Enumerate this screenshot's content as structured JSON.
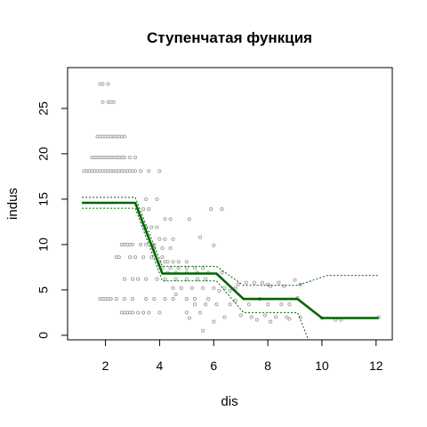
{
  "chart_data": {
    "type": "line",
    "title": "Ступенчатая функция",
    "xlabel": "dis",
    "ylabel": "indus",
    "xlim": [
      0.6,
      12.6
    ],
    "ylim": [
      -0.5,
      29.5
    ],
    "x_ticks": [
      2,
      4,
      6,
      8,
      10,
      12
    ],
    "y_ticks": [
      0,
      5,
      10,
      15,
      20,
      25
    ],
    "legend": "none",
    "grid": false,
    "colors": {
      "fit": "#006400",
      "band": "#006400",
      "points": "#a0a0a0",
      "axes": "#000000"
    },
    "series": [
      {
        "role": "fit",
        "x": [
          1.13,
          3.1,
          4.1,
          6.1,
          7.1,
          9.1,
          10.0,
          12.1
        ],
        "y": [
          14.6,
          14.6,
          6.8,
          6.8,
          4.0,
          4.0,
          1.9,
          1.9
        ]
      },
      {
        "role": "upper_band",
        "x": [
          1.13,
          3.1,
          4.1,
          6.1,
          7.1,
          9.1,
          10.2,
          12.1
        ],
        "y": [
          15.2,
          15.2,
          7.6,
          7.6,
          5.5,
          5.5,
          6.6,
          6.6
        ]
      },
      {
        "role": "lower_band",
        "x": [
          1.13,
          3.1,
          4.1,
          6.1,
          7.1,
          9.1,
          9.5
        ],
        "y": [
          14.0,
          14.0,
          6.0,
          6.0,
          2.5,
          2.5,
          -0.5
        ]
      }
    ],
    "points": [
      [
        1.2,
        18.1
      ],
      [
        1.3,
        18.1
      ],
      [
        1.4,
        18.1
      ],
      [
        1.5,
        18.1
      ],
      [
        1.6,
        18.1
      ],
      [
        1.7,
        18.1
      ],
      [
        1.8,
        18.1
      ],
      [
        1.9,
        18.1
      ],
      [
        2.0,
        18.1
      ],
      [
        2.1,
        18.1
      ],
      [
        2.2,
        18.1
      ],
      [
        2.3,
        18.1
      ],
      [
        2.4,
        18.1
      ],
      [
        2.5,
        18.1
      ],
      [
        2.6,
        18.1
      ],
      [
        2.7,
        18.1
      ],
      [
        2.8,
        18.1
      ],
      [
        2.9,
        18.1
      ],
      [
        3.0,
        18.1
      ],
      [
        3.1,
        18.1
      ],
      [
        3.3,
        18.1
      ],
      [
        3.6,
        18.1
      ],
      [
        4.0,
        18.1
      ],
      [
        1.8,
        27.7
      ],
      [
        1.9,
        27.7
      ],
      [
        2.1,
        27.7
      ],
      [
        1.9,
        25.7
      ],
      [
        2.1,
        25.7
      ],
      [
        2.2,
        25.7
      ],
      [
        2.3,
        25.7
      ],
      [
        1.7,
        21.9
      ],
      [
        1.8,
        21.9
      ],
      [
        1.9,
        21.9
      ],
      [
        2.0,
        21.9
      ],
      [
        2.1,
        21.9
      ],
      [
        2.2,
        21.9
      ],
      [
        2.3,
        21.9
      ],
      [
        2.4,
        21.9
      ],
      [
        2.5,
        21.9
      ],
      [
        2.6,
        21.9
      ],
      [
        2.7,
        21.9
      ],
      [
        1.5,
        19.6
      ],
      [
        1.6,
        19.6
      ],
      [
        1.7,
        19.6
      ],
      [
        1.8,
        19.6
      ],
      [
        1.9,
        19.6
      ],
      [
        2.0,
        19.6
      ],
      [
        2.1,
        19.6
      ],
      [
        2.2,
        19.6
      ],
      [
        2.3,
        19.6
      ],
      [
        2.4,
        19.6
      ],
      [
        2.5,
        19.6
      ],
      [
        2.6,
        19.6
      ],
      [
        2.7,
        19.6
      ],
      [
        2.9,
        19.6
      ],
      [
        3.1,
        19.6
      ],
      [
        2.6,
        10.0
      ],
      [
        2.7,
        10.0
      ],
      [
        2.8,
        10.0
      ],
      [
        2.9,
        10.0
      ],
      [
        3.0,
        10.0
      ],
      [
        3.3,
        10.0
      ],
      [
        3.5,
        10.0
      ],
      [
        3.8,
        10.0
      ],
      [
        2.4,
        8.6
      ],
      [
        2.5,
        8.6
      ],
      [
        2.9,
        8.6
      ],
      [
        3.1,
        8.6
      ],
      [
        3.4,
        8.6
      ],
      [
        3.7,
        8.6
      ],
      [
        4.1,
        8.6
      ],
      [
        2.7,
        6.2
      ],
      [
        3.0,
        6.2
      ],
      [
        3.2,
        6.2
      ],
      [
        3.5,
        6.2
      ],
      [
        3.9,
        6.2
      ],
      [
        4.2,
        6.2
      ],
      [
        4.6,
        6.2
      ],
      [
        5.0,
        6.2
      ],
      [
        5.4,
        6.2
      ],
      [
        5.7,
        6.2
      ],
      [
        1.8,
        4.0
      ],
      [
        1.9,
        4.0
      ],
      [
        2.0,
        4.0
      ],
      [
        2.1,
        4.0
      ],
      [
        2.2,
        4.0
      ],
      [
        2.4,
        4.0
      ],
      [
        2.7,
        4.0
      ],
      [
        3.0,
        4.0
      ],
      [
        3.5,
        4.0
      ],
      [
        3.8,
        4.0
      ],
      [
        4.2,
        4.0
      ],
      [
        4.5,
        4.0
      ],
      [
        5.0,
        4.0
      ],
      [
        5.3,
        4.0
      ],
      [
        2.6,
        2.5
      ],
      [
        2.7,
        2.5
      ],
      [
        2.8,
        2.5
      ],
      [
        2.9,
        2.5
      ],
      [
        3.0,
        2.5
      ],
      [
        3.2,
        2.5
      ],
      [
        3.4,
        2.5
      ],
      [
        3.6,
        2.5
      ],
      [
        4.0,
        2.5
      ],
      [
        5.0,
        2.5
      ],
      [
        5.5,
        2.5
      ],
      [
        3.5,
        15.0
      ],
      [
        3.9,
        15.0
      ],
      [
        3.4,
        13.9
      ],
      [
        3.6,
        13.9
      ],
      [
        4.2,
        12.8
      ],
      [
        4.4,
        12.8
      ],
      [
        5.1,
        12.8
      ],
      [
        3.5,
        11.9
      ],
      [
        3.7,
        11.9
      ],
      [
        3.9,
        11.9
      ],
      [
        4.0,
        10.6
      ],
      [
        4.2,
        10.6
      ],
      [
        4.5,
        10.6
      ],
      [
        3.8,
        9.6
      ],
      [
        4.1,
        9.6
      ],
      [
        4.4,
        9.6
      ],
      [
        4.0,
        8.1
      ],
      [
        4.2,
        8.1
      ],
      [
        4.3,
        8.1
      ],
      [
        4.5,
        8.1
      ],
      [
        4.7,
        8.1
      ],
      [
        5.0,
        8.1
      ],
      [
        4.1,
        7.4
      ],
      [
        4.4,
        7.4
      ],
      [
        4.7,
        7.4
      ],
      [
        5.0,
        7.4
      ],
      [
        5.3,
        7.4
      ],
      [
        5.6,
        7.4
      ],
      [
        4.3,
        6.9
      ],
      [
        4.6,
        6.9
      ],
      [
        5.0,
        6.9
      ],
      [
        5.4,
        6.9
      ],
      [
        5.8,
        6.9
      ],
      [
        6.3,
        6.9
      ],
      [
        4.5,
        5.2
      ],
      [
        4.8,
        5.2
      ],
      [
        5.2,
        5.2
      ],
      [
        5.6,
        5.2
      ],
      [
        6.0,
        5.2
      ],
      [
        6.4,
        5.2
      ],
      [
        6.8,
        5.2
      ],
      [
        5.5,
        10.8
      ],
      [
        5.9,
        13.9
      ],
      [
        6.3,
        13.9
      ],
      [
        6.0,
        9.9
      ],
      [
        5.3,
        3.4
      ],
      [
        5.7,
        3.4
      ],
      [
        6.1,
        3.4
      ],
      [
        6.6,
        3.4
      ],
      [
        5.6,
        0.5
      ],
      [
        6.0,
        1.5
      ],
      [
        6.4,
        2.0
      ],
      [
        5.1,
        1.9
      ],
      [
        4.6,
        4.5
      ],
      [
        5.8,
        4.0
      ],
      [
        6.2,
        4.9
      ],
      [
        6.6,
        4.9
      ],
      [
        6.9,
        5.6
      ],
      [
        7.2,
        5.8
      ],
      [
        7.5,
        5.8
      ],
      [
        7.8,
        5.8
      ],
      [
        8.1,
        5.4
      ],
      [
        8.4,
        5.8
      ],
      [
        8.6,
        5.4
      ],
      [
        6.8,
        3.8
      ],
      [
        7.3,
        3.4
      ],
      [
        7.7,
        4.0
      ],
      [
        8.0,
        3.4
      ],
      [
        8.5,
        3.4
      ],
      [
        8.8,
        3.4
      ],
      [
        9.1,
        4.1
      ],
      [
        7.0,
        2.2
      ],
      [
        7.4,
        2.0
      ],
      [
        7.9,
        2.2
      ],
      [
        8.3,
        2.0
      ],
      [
        8.7,
        2.0
      ],
      [
        9.2,
        2.0
      ],
      [
        7.6,
        1.7
      ],
      [
        8.1,
        1.5
      ],
      [
        8.8,
        1.8
      ],
      [
        9.0,
        6.1
      ],
      [
        9.2,
        5.6
      ],
      [
        8.0,
        5.6
      ],
      [
        10.0,
        1.9
      ],
      [
        10.5,
        1.7
      ],
      [
        10.7,
        1.7
      ],
      [
        12.1,
        2.0
      ]
    ]
  }
}
